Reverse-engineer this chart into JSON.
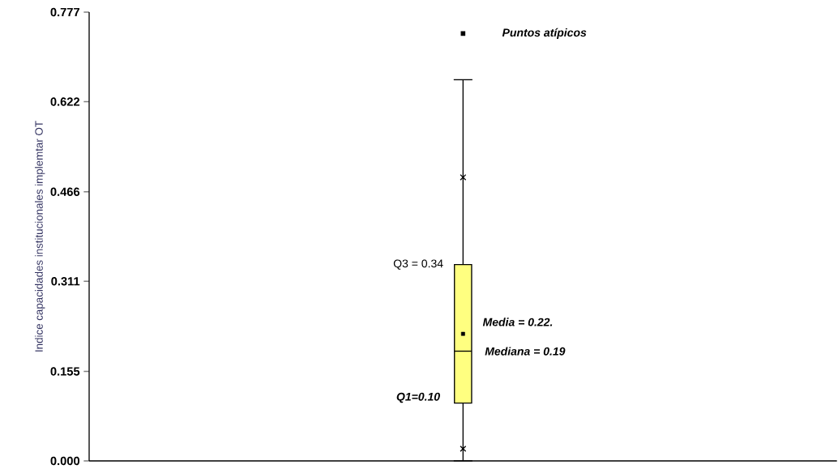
{
  "chart_data": {
    "type": "box",
    "ylabel": "Indice capacidades institucionales implemtar OT",
    "categories": [
      null
    ],
    "series": [
      {
        "color": "#ffff80",
        "boxes": [
          {
            "low": 0.0,
            "q1": 0.1,
            "median": 0.19,
            "q3": 0.34,
            "high": 0.66,
            "mean": 0.22,
            "outliers": [
              0.74
            ]
          }
        ]
      },
      {
        "type": "scatter",
        "x": [
          null,
          null
        ],
        "values": [
          0.021,
          0.491
        ],
        "marker": "cross",
        "color": "#000000"
      }
    ],
    "ylim": [
      0,
      0.777
    ],
    "yticks": [
      {
        "value": 0,
        "label": "0.000"
      },
      0.155,
      0.311,
      0.466,
      0.622,
      0.777
    ],
    "annotations": [
      "Q3 = 0.34",
      "Media = 0.22.",
      "Mediana = 0.19",
      "Q1=0.10",
      "Puntos atípicos"
    ]
  }
}
